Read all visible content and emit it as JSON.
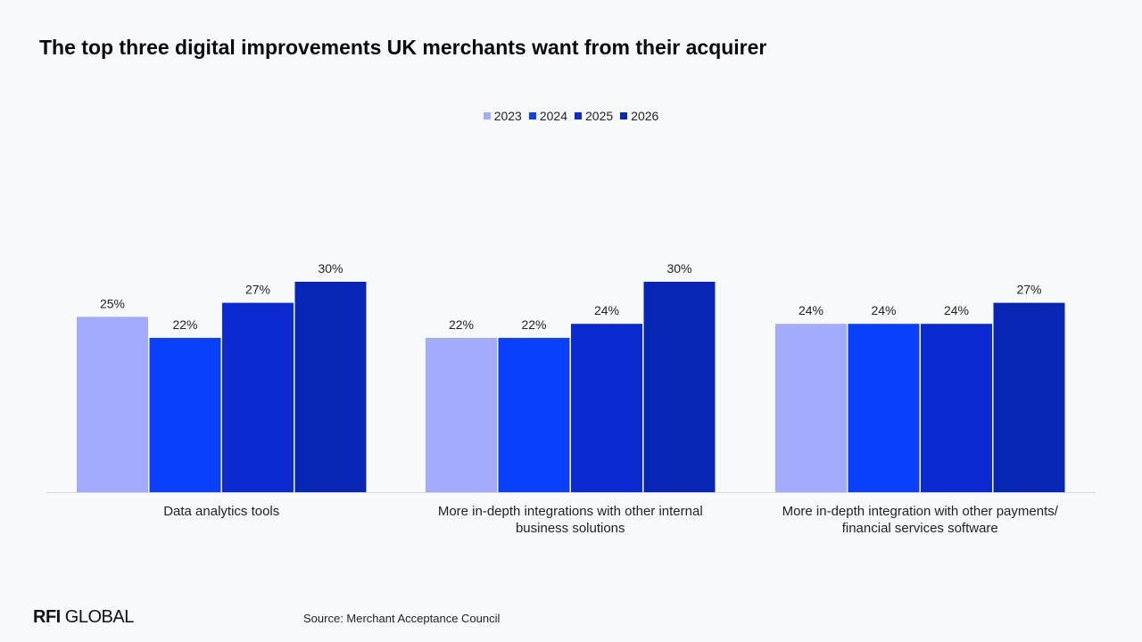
{
  "chart_data": {
    "type": "bar",
    "title": "The top three digital improvements UK merchants want from their acquirer",
    "categories": [
      "Data analytics tools",
      "More in-depth integrations with other internal business solutions",
      "More in-depth integration with other payments/ financial services software"
    ],
    "category_lines": [
      [
        "Data analytics tools"
      ],
      [
        "More in-depth integrations with other internal",
        "business solutions"
      ],
      [
        "More in-depth integration with other payments/",
        "financial services software"
      ]
    ],
    "series": [
      {
        "name": "2023",
        "color": "#a3abfc",
        "values": [
          25,
          22,
          24
        ]
      },
      {
        "name": "2024",
        "color": "#0a3ffc",
        "values": [
          22,
          22,
          24
        ]
      },
      {
        "name": "2025",
        "color": "#0b2ad2",
        "values": [
          27,
          24,
          24
        ]
      },
      {
        "name": "2026",
        "color": "#0826b6",
        "values": [
          30,
          30,
          27
        ]
      }
    ],
    "value_suffix": "%",
    "ylim": [
      0,
      32
    ],
    "grid": false,
    "legend_position": "top-center"
  },
  "footer": {
    "logo_bold": "RFI",
    "logo_rest": " GLOBAL",
    "source": "Source: Merchant Acceptance Council"
  }
}
